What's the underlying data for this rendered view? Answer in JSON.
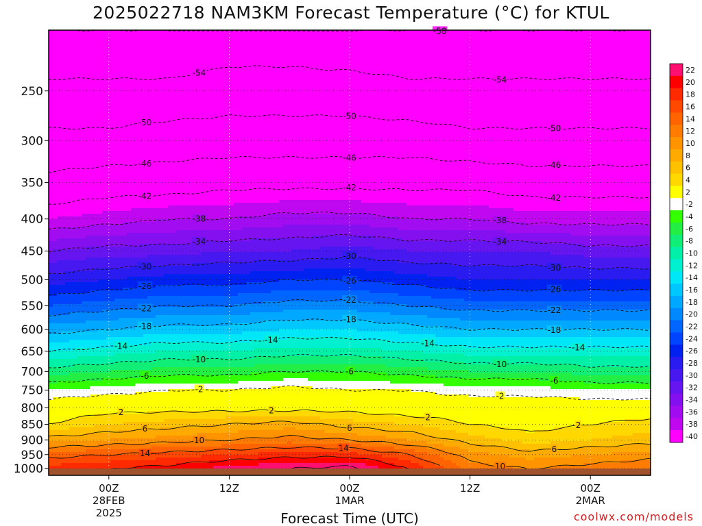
{
  "chart_data": {
    "type": "heatmap",
    "title": "2025022718 NAM3KM Forecast Temperature (°C) for KTUL",
    "xlabel": "Forecast Time (UTC)",
    "ylabel": "",
    "y_scale": "log",
    "y_range": [
      200,
      1025
    ],
    "y_reversed": true,
    "y_ticks": [
      250,
      300,
      350,
      400,
      450,
      500,
      550,
      600,
      650,
      700,
      750,
      800,
      850,
      900,
      950,
      1000
    ],
    "x_range_hours": [
      -5,
      45
    ],
    "x_ticks": [
      {
        "hour": 0,
        "lines": [
          "00Z",
          "28FEB",
          "2025"
        ]
      },
      {
        "hour": 10,
        "lines": [
          "12Z"
        ]
      },
      {
        "hour": 20,
        "lines": [
          "00Z",
          "1MAR"
        ]
      },
      {
        "hour": 30,
        "lines": [
          "12Z"
        ]
      },
      {
        "hour": 40,
        "lines": [
          "00Z",
          "2MAR"
        ]
      }
    ],
    "grid": true,
    "ground_pressure": 1000,
    "colorbar": {
      "placement": "right",
      "levels": [
        22,
        20,
        18,
        16,
        14,
        12,
        10,
        8,
        6,
        4,
        2,
        -2,
        -4,
        -6,
        -8,
        -10,
        -12,
        -14,
        -16,
        -18,
        -20,
        -22,
        -24,
        -26,
        -28,
        -30,
        -32,
        -34,
        -36,
        -38,
        -40
      ],
      "colors": [
        "#ff1070",
        "#ff0000",
        "#ff2a00",
        "#ff4800",
        "#ff6400",
        "#ff7c00",
        "#ff9400",
        "#ffaa00",
        "#ffc000",
        "#ffd800",
        "#ffff00",
        "#ffffff",
        "#33ff00",
        "#22ee44",
        "#11ee77",
        "#00f0a8",
        "#00f0d0",
        "#00e8f8",
        "#00c8ff",
        "#00a8ff",
        "#0088ff",
        "#0066ff",
        "#0044ff",
        "#0022f0",
        "#2a1cf0",
        "#4818f0",
        "#6614f0",
        "#8410f0",
        "#a20cf0",
        "#c008f0",
        "#ff00ff"
      ]
    },
    "profiles": [
      {
        "x": -5,
        "t": [
          -58,
          -53,
          -49,
          -45,
          -40,
          -34,
          -29,
          -24,
          -19,
          -14,
          -9,
          -4,
          0,
          2,
          7,
          13,
          17
        ]
      },
      {
        "x": 0,
        "t": [
          -58,
          -53,
          -49,
          -44,
          -39,
          -33,
          -28,
          -23,
          -18,
          -13,
          -8,
          -3,
          1,
          4,
          8,
          14,
          18
        ]
      },
      {
        "x": 5,
        "t": [
          -58,
          -53,
          -48,
          -44,
          -38,
          -33,
          -27,
          -22,
          -17,
          -12,
          -7,
          -2,
          1,
          5,
          9,
          15,
          19
        ]
      },
      {
        "x": 10,
        "t": [
          -57,
          -52,
          -48,
          -43,
          -38,
          -32,
          -27,
          -22,
          -17,
          -12,
          -7,
          -2,
          1,
          6,
          10,
          16,
          21
        ]
      },
      {
        "x": 15,
        "t": [
          -57,
          -52,
          -48,
          -43,
          -37,
          -32,
          -26,
          -21,
          -16,
          -11,
          -6,
          -1,
          1,
          7,
          11,
          17,
          22
        ]
      },
      {
        "x": 20,
        "t": [
          -58,
          -52,
          -48,
          -43,
          -37,
          -31,
          -26,
          -21,
          -16,
          -11,
          -6,
          -2,
          1,
          5,
          10,
          17,
          23
        ]
      },
      {
        "x": 25,
        "t": [
          -58,
          -53,
          -48,
          -43,
          -38,
          -32,
          -27,
          -22,
          -17,
          -12,
          -7,
          -2,
          0,
          4,
          8,
          14,
          18
        ]
      },
      {
        "x": 30,
        "t": [
          -58,
          -53,
          -49,
          -43,
          -38,
          -32,
          -28,
          -23,
          -18,
          -13,
          -8,
          -3,
          0,
          2,
          5,
          9,
          11
        ]
      },
      {
        "x": 35,
        "t": [
          -58,
          -53,
          -49,
          -44,
          -39,
          -32,
          -28,
          -23,
          -18,
          -13,
          -8,
          -3,
          0,
          1,
          3,
          7,
          10
        ]
      },
      {
        "x": 40,
        "t": [
          -58,
          -53,
          -49,
          -44,
          -39,
          -33,
          -28,
          -23,
          -18,
          -13,
          -9,
          -4,
          0,
          2,
          4,
          8,
          11
        ]
      },
      {
        "x": 45,
        "t": [
          -58,
          -53,
          -49,
          -44,
          -39,
          -33,
          -28,
          -23,
          -18,
          -13,
          -9,
          -4,
          0,
          3,
          5,
          9,
          12
        ]
      }
    ],
    "profile_pressures": [
      200,
      250,
      300,
      350,
      400,
      450,
      500,
      550,
      600,
      650,
      700,
      750,
      800,
      850,
      900,
      950,
      1000
    ],
    "contour_labels": [
      "-58",
      "-54",
      "-54",
      "-50",
      "-50",
      "-50",
      "-46",
      "-46",
      "-46",
      "-42",
      "-42",
      "-42",
      "-38",
      "-38",
      "-34",
      "-34",
      "-30",
      "-30",
      "-30",
      "-26",
      "-26",
      "-26",
      "-22",
      "-22",
      "-22",
      "-18",
      "-18",
      "-18",
      "-14",
      "-14",
      "-14",
      "-14",
      "-10",
      "-10",
      "-6",
      "-6",
      "-6",
      "-2",
      "-2",
      "2",
      "2",
      "2",
      "2",
      "6",
      "6",
      "6",
      "10",
      "10",
      "14",
      "14"
    ]
  },
  "credit": "coolwx.com/models"
}
